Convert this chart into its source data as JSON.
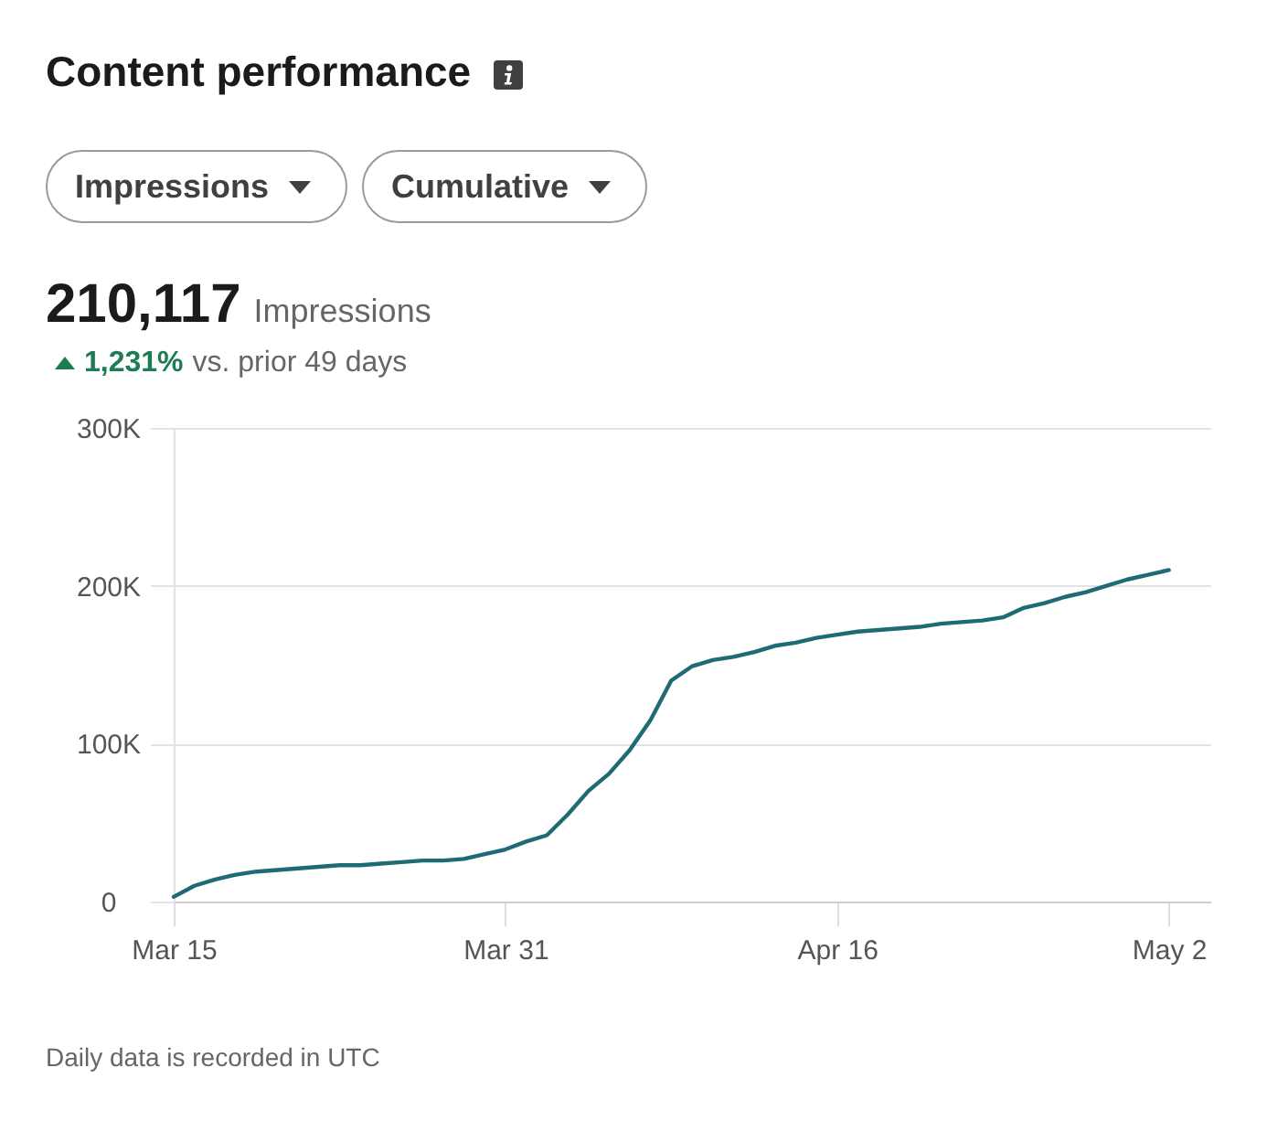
{
  "chart_data": {
    "type": "line",
    "title": "Content performance",
    "annotations": [
      "Impressions",
      "Cumulative",
      "210,117",
      "Impressions",
      "1,231%",
      "vs. prior 49 days",
      "Daily data is recorded in UTC"
    ],
    "x": [
      "--03-15",
      "--03-16",
      "--03-17",
      "--03-18",
      "--03-19",
      "--03-20",
      "--03-21",
      "--03-22",
      "--03-23",
      "--03-24",
      "--03-25",
      "--03-26",
      "--03-27",
      "--03-28",
      "--03-29",
      "--03-30",
      "--03-31",
      "--04-01",
      "--04-02",
      "--04-03",
      "--04-04",
      "--04-05",
      "--04-06",
      "--04-07",
      "--04-08",
      "--04-09",
      "--04-10",
      "--04-11",
      "--04-12",
      "--04-13",
      "--04-14",
      "--04-15",
      "--04-16",
      "--04-17",
      "--04-18",
      "--04-19",
      "--04-20",
      "--04-21",
      "--04-22",
      "--04-23",
      "--04-24",
      "--04-25",
      "--04-26",
      "--04-27",
      "--04-28",
      "--04-29",
      "--04-30",
      "--05-01",
      "--05-02"
    ],
    "series": [
      {
        "color": "#1f6b75",
        "values": [
          3000,
          10000,
          14000,
          17000,
          19000,
          20000,
          21000,
          22000,
          23000,
          23000,
          24000,
          25000,
          26000,
          26000,
          27000,
          30000,
          33000,
          38000,
          42000,
          55000,
          70000,
          81000,
          96000,
          115000,
          140000,
          149000,
          153000,
          155000,
          158000,
          162000,
          164000,
          167000,
          169000,
          171000,
          172000,
          173000,
          174000,
          176000,
          177000,
          178000,
          180000,
          186000,
          189000,
          193000,
          196000,
          200000,
          204000,
          207000,
          210000
        ]
      }
    ],
    "xlim": [
      "--03-15",
      "--05-04"
    ],
    "xticks": [
      {
        "value": "--03-15",
        "label": "Mar 15"
      },
      {
        "value": "--03-31",
        "label": "Mar 31"
      },
      {
        "value": "--04-16",
        "label": "Apr 16"
      },
      {
        "value": "--05-02",
        "label": "May 2"
      }
    ],
    "ylim": [
      0,
      300000
    ],
    "yticks": [
      0,
      {
        "value": 100000,
        "label": "100K"
      },
      {
        "value": 200000,
        "label": "200K"
      },
      {
        "value": 300000,
        "label": "300K"
      }
    ],
    "grid": "y"
  }
}
